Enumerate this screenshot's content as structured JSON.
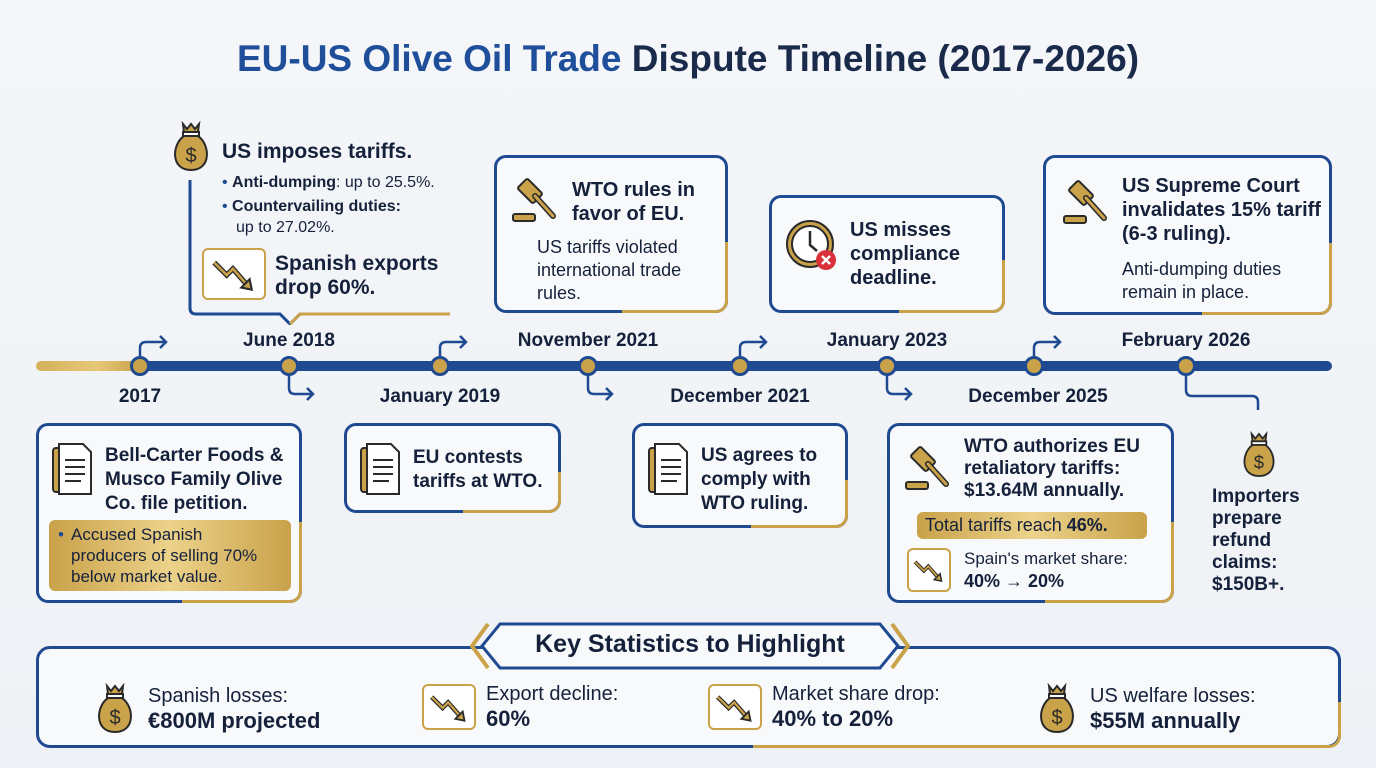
{
  "title": {
    "highlight": "EU-US Olive Oil Trade",
    "rest": " Dispute Timeline (2017-2026)"
  },
  "colors": {
    "navy": "#1f4a92",
    "gold": "#c9a24a",
    "text": "#15213b",
    "alert": "#d9303a"
  },
  "events": {
    "e2017": {
      "date": "2017",
      "head": "Bell-Carter Foods & Musco Family Olive Co. file petition.",
      "note": "Accused Spanish producers of selling 70% below market value.",
      "icon": "document-icon"
    },
    "jun2018": {
      "date": "June 2018",
      "head": "US imposes tariffs.",
      "b1_label": "Anti-dumping",
      "b1_rest": ": up to 25.5%.",
      "b2_label": "Countervailing duties:",
      "b2_rest": "up to 27.02%.",
      "sub": "Spanish exports drop 60%.",
      "icon": "money-bag-icon"
    },
    "jan2019": {
      "date": "January 2019",
      "head": "EU contests tariffs at WTO.",
      "icon": "document-icon"
    },
    "nov2021": {
      "date": "November 2021",
      "head": "WTO rules in favor of EU.",
      "body": "US tariffs violated international trade rules.",
      "icon": "gavel-icon"
    },
    "dec2021": {
      "date": "December 2021",
      "head": "US agrees to comply with WTO ruling.",
      "icon": "document-icon"
    },
    "jan2023": {
      "date": "January 2023",
      "head": "US misses compliance deadline.",
      "icon": "clock-alert-icon"
    },
    "dec2025": {
      "date": "December 2025",
      "head": "WTO authorizes EU retaliatory tariffs: $13.64M annually.",
      "pill_a": "Total tariffs reach ",
      "pill_b": "46%.",
      "share_label": "Spain's market share:",
      "share_value": "40% → 20%",
      "icon": "gavel-icon"
    },
    "feb2026": {
      "date": "February 2026",
      "head": "US Supreme Court invalidates 15% tariff (6-3 ruling).",
      "body": "Anti-dumping duties remain in place.",
      "side": "Importers prepare refund claims: $150B+.",
      "icon": "gavel-icon"
    }
  },
  "stats": {
    "title": "Key Statistics to Highlight",
    "items": [
      {
        "label": "Spanish losses:",
        "value": "€800M projected",
        "icon": "money-bag-icon"
      },
      {
        "label": "Export decline:",
        "value": "60%",
        "icon": "trend-down-icon"
      },
      {
        "label": "Market share drop:",
        "value": "40% to 20%",
        "icon": "trend-down-icon"
      },
      {
        "label": "US welfare losses:",
        "value": "$55M annually",
        "icon": "money-bag-icon"
      }
    ]
  }
}
